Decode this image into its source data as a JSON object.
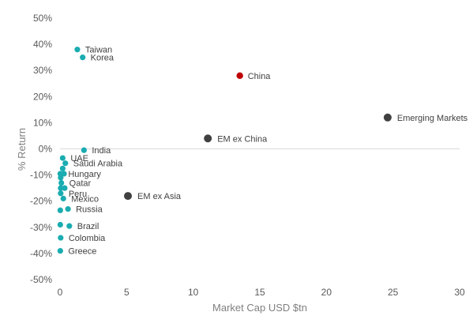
{
  "chart_data": {
    "type": "scatter",
    "title": "",
    "xlabel": "Market Cap USD $tn",
    "ylabel": "% Return",
    "xlim": [
      0,
      30
    ],
    "ylim": [
      -50,
      50
    ],
    "x_ticks": [
      "0",
      "5",
      "10",
      "15",
      "20",
      "25",
      "30"
    ],
    "y_ticks": [
      "50%",
      "40%",
      "30%",
      "20%",
      "10%",
      "0%",
      "-10%",
      "-20%",
      "-30%",
      "-40%",
      "-50%"
    ],
    "grid": false,
    "legend": "none",
    "colors": {
      "country": "#1aacb0",
      "china": "#c00000",
      "aggregate": "#404040"
    },
    "points": [
      {
        "label": "Taiwan",
        "x": 1.3,
        "y": 38,
        "group": "country"
      },
      {
        "label": "Korea",
        "x": 1.7,
        "y": 35,
        "group": "country"
      },
      {
        "label": "China",
        "x": 13.5,
        "y": 28,
        "group": "china"
      },
      {
        "label": "Emerging Markets",
        "x": 24.6,
        "y": 12,
        "group": "aggregate"
      },
      {
        "label": "EM ex China",
        "x": 11.1,
        "y": 4,
        "group": "aggregate"
      },
      {
        "label": "India",
        "x": 1.8,
        "y": -0.5,
        "group": "country"
      },
      {
        "label": "UAE",
        "x": 0.2,
        "y": -3.5,
        "group": "country"
      },
      {
        "label": "Saudi Arabia",
        "x": 0.4,
        "y": -5.5,
        "group": "country"
      },
      {
        "label": "",
        "x": 0.2,
        "y": -7.5,
        "group": "country"
      },
      {
        "label": "Hungary",
        "x": 0.02,
        "y": -9.5,
        "group": "country"
      },
      {
        "label": "",
        "x": 0.3,
        "y": -9.5,
        "group": "country"
      },
      {
        "label": "",
        "x": 0.05,
        "y": -11,
        "group": "country"
      },
      {
        "label": "Qatar",
        "x": 0.1,
        "y": -13,
        "group": "country"
      },
      {
        "label": "",
        "x": 0.05,
        "y": -15,
        "group": "country"
      },
      {
        "label": "",
        "x": 0.35,
        "y": -15,
        "group": "country"
      },
      {
        "label": "Peru",
        "x": 0.05,
        "y": -17,
        "group": "country"
      },
      {
        "label": "Mexico",
        "x": 0.25,
        "y": -19,
        "group": "country"
      },
      {
        "label": "EM ex Asia",
        "x": 5.1,
        "y": -18,
        "group": "aggregate"
      },
      {
        "label": "",
        "x": 0.02,
        "y": -23.5,
        "group": "country"
      },
      {
        "label": "Russia",
        "x": 0.6,
        "y": -23,
        "group": "country"
      },
      {
        "label": "",
        "x": 0.02,
        "y": -29,
        "group": "country"
      },
      {
        "label": "Brazil",
        "x": 0.7,
        "y": -29.5,
        "group": "country"
      },
      {
        "label": "Colombia",
        "x": 0.05,
        "y": -34,
        "group": "country"
      },
      {
        "label": "Greece",
        "x": 0.02,
        "y": -39,
        "group": "country"
      }
    ]
  }
}
